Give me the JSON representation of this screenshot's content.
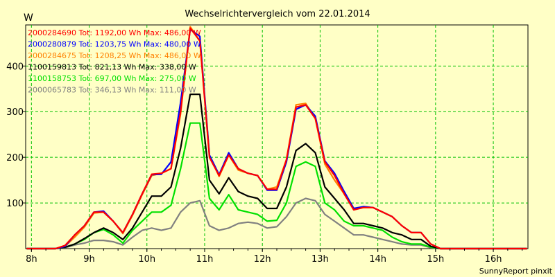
{
  "chart_data": {
    "type": "line",
    "title": "Wechselrichtervergleich vom 22.01.2014",
    "ylabel": "W",
    "xlim": [
      7.9,
      16.6
    ],
    "ylim": [
      0,
      490
    ],
    "x_ticks": [
      {
        "value": 8,
        "label": "8h"
      },
      {
        "value": 9,
        "label": "9h"
      },
      {
        "value": 10,
        "label": "10h"
      },
      {
        "value": 11,
        "label": "11h"
      },
      {
        "value": 12,
        "label": "12h"
      },
      {
        "value": 13,
        "label": "13h"
      },
      {
        "value": 14,
        "label": "14h"
      },
      {
        "value": 15,
        "label": "15h"
      },
      {
        "value": 16,
        "label": "16h"
      }
    ],
    "y_ticks": [
      {
        "value": 100,
        "label": "100"
      },
      {
        "value": 200,
        "label": "200"
      },
      {
        "value": 300,
        "label": "300"
      },
      {
        "value": 400,
        "label": "400"
      }
    ],
    "grid": true,
    "legend_position": "top-left",
    "x": [
      7.917,
      8.167,
      8.417,
      8.583,
      8.75,
      8.917,
      9.083,
      9.25,
      9.417,
      9.583,
      9.75,
      9.917,
      10.083,
      10.25,
      10.417,
      10.583,
      10.75,
      10.917,
      11.083,
      11.25,
      11.417,
      11.583,
      11.75,
      11.917,
      12.083,
      12.25,
      12.417,
      12.583,
      12.75,
      12.917,
      13.083,
      13.25,
      13.417,
      13.583,
      13.75,
      13.917,
      14.083,
      14.25,
      14.417,
      14.583,
      14.75,
      14.917,
      15.083,
      15.25,
      15.417,
      15.583,
      15.75,
      15.917,
      16.083,
      16.25,
      16.417,
      16.583
    ],
    "series": [
      {
        "name": "2000284690 Tot: 1192,00 Wh Max: 486,00 W",
        "color": "#ff0000",
        "values": [
          0,
          0,
          0,
          7,
          30,
          50,
          80,
          80,
          60,
          35,
          75,
          120,
          163,
          165,
          175,
          300,
          483,
          455,
          200,
          160,
          205,
          175,
          165,
          160,
          130,
          130,
          195,
          310,
          315,
          285,
          190,
          160,
          120,
          85,
          90,
          90,
          80,
          70,
          50,
          35,
          35,
          10,
          0,
          0,
          0,
          0,
          0,
          0,
          0,
          0,
          0,
          0
        ]
      },
      {
        "name": "2000280879 Tot: 1203,75 Wh Max: 480,00 W",
        "color": "#0000ff",
        "values": [
          0,
          0,
          0,
          5,
          30,
          50,
          80,
          82,
          60,
          35,
          75,
          120,
          162,
          163,
          190,
          320,
          480,
          465,
          205,
          162,
          210,
          175,
          165,
          160,
          128,
          128,
          190,
          305,
          315,
          290,
          192,
          165,
          125,
          88,
          92,
          90,
          80,
          70,
          50,
          35,
          35,
          10,
          0,
          0,
          0,
          0,
          0,
          0,
          0,
          0,
          0,
          0
        ]
      },
      {
        "name": "2000284675 Tot: 1208,25 Wh Max: 486,00 W",
        "color": "#ff8000",
        "values": [
          0,
          0,
          0,
          5,
          25,
          47,
          78,
          80,
          60,
          33,
          73,
          118,
          160,
          165,
          175,
          295,
          486,
          455,
          205,
          158,
          205,
          172,
          165,
          160,
          130,
          135,
          195,
          315,
          318,
          285,
          185,
          150,
          120,
          88,
          90,
          90,
          80,
          70,
          50,
          35,
          35,
          10,
          0,
          0,
          0,
          0,
          0,
          0,
          0,
          0,
          0,
          0
        ]
      },
      {
        "name": "1100159813 Tot: 821,13 Wh Max: 338,00 W",
        "color": "#000000",
        "values": [
          0,
          0,
          0,
          3,
          10,
          22,
          35,
          45,
          35,
          20,
          45,
          80,
          115,
          115,
          135,
          220,
          338,
          338,
          150,
          120,
          155,
          125,
          115,
          110,
          88,
          88,
          135,
          215,
          230,
          210,
          135,
          110,
          85,
          55,
          55,
          50,
          45,
          35,
          30,
          20,
          20,
          5,
          0,
          0,
          0,
          0,
          0,
          0,
          0,
          0,
          0,
          0
        ]
      },
      {
        "name": "1100158753 Tot: 697,00 Wh Max: 275,00 W",
        "color": "#00e000",
        "values": [
          0,
          0,
          0,
          3,
          10,
          20,
          35,
          42,
          30,
          12,
          40,
          60,
          80,
          80,
          95,
          175,
          275,
          275,
          110,
          85,
          118,
          85,
          80,
          75,
          60,
          62,
          100,
          180,
          190,
          180,
          100,
          85,
          60,
          50,
          50,
          45,
          40,
          25,
          15,
          10,
          10,
          3,
          0,
          0,
          0,
          0,
          0,
          0,
          0,
          0,
          0,
          0
        ]
      },
      {
        "name": "2000065783 Tot: 346,13 Wh Max: 111,00 W",
        "color": "#808080",
        "values": [
          0,
          0,
          0,
          2,
          8,
          12,
          18,
          18,
          15,
          8,
          25,
          40,
          45,
          40,
          45,
          80,
          100,
          105,
          50,
          40,
          45,
          55,
          58,
          55,
          45,
          48,
          70,
          100,
          110,
          105,
          75,
          60,
          45,
          30,
          30,
          25,
          20,
          15,
          10,
          8,
          8,
          2,
          0,
          0,
          0,
          0,
          0,
          0,
          0,
          0,
          0,
          0
        ]
      }
    ]
  },
  "footer": "SunnyReport pinxit"
}
